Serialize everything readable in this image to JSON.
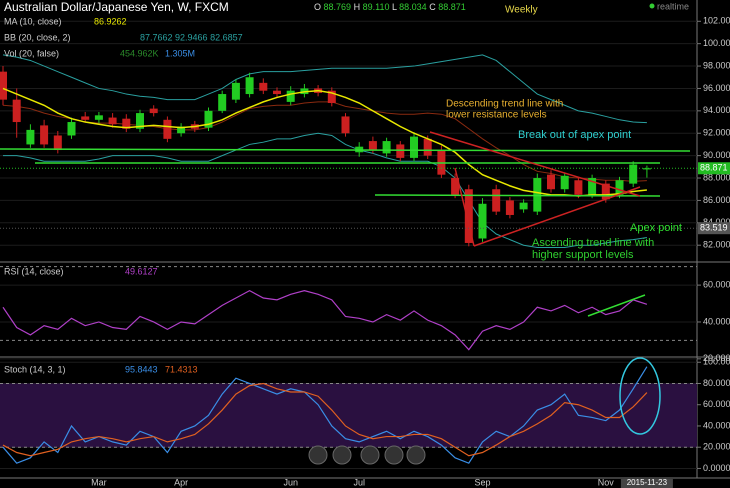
{
  "header": {
    "title": "Australian Dollar/Japanese Yen, W, FXCM",
    "ohlc": [
      {
        "label": "O",
        "value": "88.769"
      },
      {
        "label": "H",
        "value": "89.110"
      },
      {
        "label": "L",
        "value": "88.034"
      },
      {
        "label": "C",
        "value": "88.871"
      }
    ],
    "interval": "Weekly",
    "status": "realtime",
    "legend": [
      {
        "label": "MA (10, close)",
        "value": "86.9262"
      },
      {
        "label": "BB (20, close, 2)",
        "value": "87.7662 92.9466 82.6857"
      },
      {
        "label": "Vol (20, false)",
        "value": "454.962K",
        "value2": "1.305M"
      }
    ]
  },
  "annotations": [
    {
      "text": "Descending trend line with"
    },
    {
      "text": "lower resistance levels"
    },
    {
      "text": "Break out of apex point"
    },
    {
      "text": "Apex point"
    },
    {
      "text": "Ascending trend line with"
    },
    {
      "text": "higher support levels"
    }
  ],
  "chart_data": [
    {
      "type": "candlestick",
      "ylim": [
        80.5,
        103.9
      ],
      "yticks": [
        {
          "value": 82,
          "label": "82.000"
        },
        {
          "value": 84,
          "label": "84.000"
        },
        {
          "value": 86,
          "label": "86.000"
        },
        {
          "value": 88,
          "label": "88.000"
        },
        {
          "value": 90,
          "label": "90.000"
        },
        {
          "value": 92,
          "label": "92.000"
        },
        {
          "value": 94,
          "label": "94.000"
        },
        {
          "value": 96,
          "label": "96.000"
        },
        {
          "value": 98,
          "label": "98.000"
        },
        {
          "value": 100,
          "label": "100.000"
        },
        {
          "value": 102,
          "label": "102.000"
        }
      ],
      "open": [
        97.5,
        95,
        91,
        92.7,
        91.8,
        91.8,
        93.5,
        93.2,
        93.4,
        93.3,
        92.4,
        94.2,
        93.2,
        92,
        92.8,
        92.5,
        94,
        95,
        95.5,
        96.5,
        95.8,
        94.8,
        95.5,
        96,
        95.8,
        93.5,
        90.3,
        91.3,
        90.2,
        91,
        89.8,
        91.5,
        90.5,
        88,
        87,
        82.6,
        87,
        86,
        85.2,
        85,
        88.3,
        87,
        87.8,
        86.5,
        87.5,
        86.5,
        87.5,
        88.769
      ],
      "high": [
        98,
        96,
        92.8,
        93.2,
        92.2,
        93.4,
        93.9,
        93.9,
        93.8,
        93.7,
        94.1,
        94.5,
        93.5,
        92.9,
        93.1,
        94.3,
        95.8,
        96.8,
        97.4,
        96.9,
        96.1,
        96.2,
        96.4,
        96.3,
        96.1,
        93.8,
        91.2,
        91.7,
        91.6,
        91.3,
        92.1,
        91.8,
        90.9,
        88.4,
        87.4,
        86.2,
        87.4,
        86.3,
        86.1,
        88.4,
        88.7,
        88.5,
        88.1,
        88.3,
        87.8,
        88.1,
        89.5,
        89.11
      ],
      "low": [
        94.5,
        91.6,
        90.7,
        90.7,
        90.2,
        91.5,
        93,
        92.9,
        92.5,
        92.1,
        92.1,
        93.5,
        91.2,
        91.7,
        92.1,
        92.2,
        93.8,
        94.7,
        95.2,
        95.5,
        95.2,
        94.5,
        95.2,
        95.3,
        94.4,
        91.7,
        89.9,
        90.2,
        89.9,
        89.5,
        89.5,
        89.7,
        88,
        86.2,
        81.9,
        82.3,
        84.7,
        84.4,
        84.9,
        84.7,
        86.7,
        86.7,
        86.2,
        86.2,
        85.8,
        86.2,
        87.2,
        88.034
      ],
      "close": [
        95,
        93,
        92.3,
        91,
        90.5,
        93,
        93.2,
        93.6,
        92.8,
        92.4,
        93.8,
        93.8,
        91.5,
        92.6,
        92.4,
        94,
        95.5,
        96.5,
        97,
        95.8,
        95.5,
        95.8,
        96,
        95.6,
        94.7,
        92,
        90.8,
        90.5,
        91.3,
        89.8,
        91.7,
        90,
        88.3,
        86.5,
        82.2,
        85.7,
        85,
        84.7,
        85.8,
        88,
        87,
        88.2,
        86.5,
        88,
        86.1,
        87.8,
        89.2,
        88.871
      ],
      "ma": {
        "label": "MA (10, close)",
        "color": "#e8e800",
        "values": [
          96,
          95.5,
          95,
          94.5,
          93.8,
          93.3,
          93,
          92.8,
          92.6,
          92.5,
          92.6,
          92.7,
          92.6,
          92.5,
          92.6,
          92.8,
          93.2,
          93.8,
          94.3,
          94.8,
          95.2,
          95.5,
          95.7,
          95.8,
          95.6,
          95.2,
          94.7,
          94,
          93.3,
          92.6,
          92,
          91.5,
          91,
          90.3,
          89.2,
          88.3,
          87.8,
          87.3,
          86.9,
          86.7,
          86.5,
          86.5,
          86.4,
          86.5,
          86.5,
          86.6,
          86.8,
          86.9262
        ]
      },
      "bb": {
        "label": "BB (20, close, 2)",
        "color": "#2aa0a0",
        "middle_color": "#8a2a10",
        "upper": [
          99,
          98.8,
          98.5,
          98,
          97.5,
          97,
          96.5,
          96,
          95.8,
          95.5,
          95.3,
          95.2,
          95,
          95,
          95,
          95.5,
          96,
          96.8,
          97.3,
          97.5,
          97.5,
          97.5,
          97.6,
          97.7,
          97.8,
          97.8,
          97.8,
          97.8,
          97.8,
          97.9,
          98,
          98.2,
          98.4,
          98.6,
          98.8,
          99,
          98.5,
          97.5,
          96.5,
          95.5,
          95,
          94.5,
          94,
          93.8,
          93.5,
          93.2,
          93,
          92.9466
        ],
        "middle": [
          94.5,
          94.4,
          94.2,
          93.8,
          93.5,
          93.3,
          93,
          92.9,
          92.9,
          92.8,
          92.7,
          92.6,
          92.4,
          92.3,
          92.3,
          92.5,
          93,
          93.6,
          94.2,
          94.4,
          94.5,
          94.5,
          94.7,
          94.8,
          94.8,
          94.4,
          94.2,
          94,
          93.8,
          93.7,
          93.7,
          93.8,
          93.7,
          93.3,
          92.4,
          91.5,
          90.7,
          90,
          89.2,
          88.6,
          88.4,
          88.1,
          88,
          87.9,
          87.8,
          87.8,
          87.7,
          87.7662
        ],
        "lower": [
          90,
          90,
          89.8,
          89.5,
          89.5,
          89.5,
          89.5,
          89.7,
          90,
          90,
          90,
          90,
          89.8,
          89.5,
          89.5,
          89.5,
          90,
          90.5,
          91,
          91.2,
          91.5,
          91.5,
          91.8,
          92,
          91.8,
          91,
          90.5,
          90.2,
          89.8,
          89.5,
          89.5,
          89.5,
          89,
          88,
          86,
          84,
          83,
          82.5,
          82,
          81.8,
          81.8,
          81.8,
          82,
          82,
          82.2,
          82.4,
          82.5,
          82.6857
        ]
      },
      "price_labels": [
        {
          "value": 88.871,
          "label": "88.871",
          "color": "#22bb22"
        },
        {
          "value": 83.519,
          "label": "83.519",
          "color": "#555555"
        }
      ]
    },
    {
      "type": "line",
      "title": "RSI (14, close)",
      "ylim": [
        21,
        72
      ],
      "yticks": [
        {
          "value": 20,
          "label": "20.000"
        },
        {
          "value": 40,
          "label": "40.000"
        },
        {
          "value": 60,
          "label": "60.000"
        }
      ],
      "levels": [
        30,
        70
      ],
      "series": [
        {
          "name": "49.6127",
          "color": "#b040c8",
          "values": [
            48,
            37,
            33,
            38,
            36,
            42,
            38,
            40,
            37,
            36,
            43,
            40,
            36,
            40,
            39,
            44,
            49,
            53,
            57,
            53,
            52,
            55,
            57,
            55,
            52,
            43,
            42,
            40,
            44,
            41,
            46,
            41,
            38,
            33,
            25,
            35,
            38,
            36,
            40,
            48,
            46,
            49,
            45,
            48,
            44,
            46,
            52,
            49.6127
          ]
        }
      ]
    },
    {
      "type": "line",
      "title": "Stoch (14, 3, 1)",
      "ylim": [
        -9,
        104
      ],
      "band": [
        20,
        80
      ],
      "yticks": [
        {
          "value": 0,
          "label": "0.0000"
        },
        {
          "value": 20,
          "label": "20.0000"
        },
        {
          "value": 40,
          "label": "40.0000"
        },
        {
          "value": 60,
          "label": "60.0000"
        },
        {
          "value": 80,
          "label": "80.0000"
        },
        {
          "value": 100,
          "label": "100.0000"
        }
      ],
      "categories": [
        null,
        null,
        null,
        null,
        null,
        null,
        null,
        "Mar",
        null,
        null,
        null,
        null,
        null,
        "Apr",
        null,
        null,
        null,
        null,
        null,
        null,
        null,
        "Jun",
        null,
        null,
        null,
        null,
        "Jul",
        null,
        null,
        null,
        null,
        null,
        null,
        null,
        null,
        "Sep",
        null,
        null,
        null,
        null,
        null,
        null,
        null,
        null,
        "Nov",
        null,
        null,
        "2015-11-23"
      ],
      "series": [
        {
          "name": "95.8443",
          "color": "#3a8ee6",
          "values": [
            20,
            5,
            10,
            25,
            15,
            40,
            25,
            30,
            25,
            22,
            35,
            30,
            15,
            35,
            40,
            50,
            70,
            85,
            80,
            75,
            70,
            75,
            72,
            60,
            40,
            28,
            25,
            30,
            35,
            28,
            35,
            30,
            22,
            10,
            5,
            25,
            35,
            30,
            40,
            55,
            60,
            70,
            50,
            48,
            45,
            55,
            75,
            95.8443
          ]
        },
        {
          "name": "71.4313",
          "color": "#e06020",
          "values": [
            22,
            15,
            12,
            15,
            18,
            25,
            28,
            30,
            28,
            25,
            28,
            30,
            25,
            28,
            32,
            42,
            55,
            70,
            78,
            80,
            75,
            72,
            72,
            68,
            55,
            40,
            32,
            28,
            30,
            30,
            32,
            32,
            28,
            20,
            12,
            15,
            22,
            30,
            35,
            42,
            50,
            62,
            60,
            55,
            48,
            48,
            58,
            71.4313
          ]
        }
      ]
    }
  ]
}
